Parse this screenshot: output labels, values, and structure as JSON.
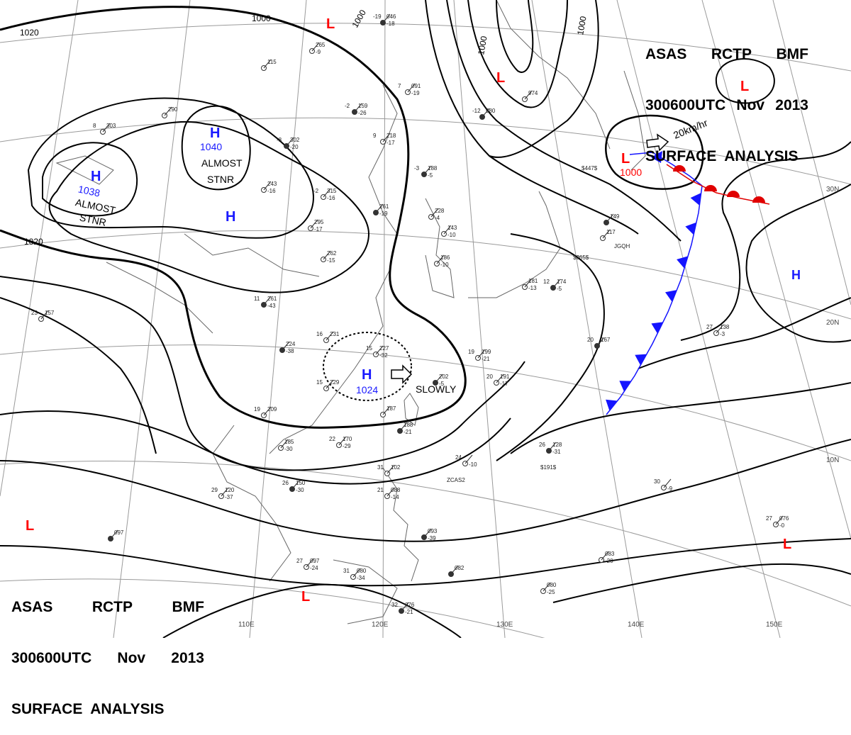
{
  "title": {
    "line1": [
      "ASAS",
      "RCTP",
      "BMF"
    ],
    "line2": [
      "300600UTC",
      "Nov",
      "2013"
    ],
    "line3": "SURFACE  ANALYSIS"
  },
  "colors": {
    "high": "#1a1aff",
    "low": "#ff0000",
    "cold_front": "#1414ff",
    "warm_front": "#e00000",
    "isobar": "#000000",
    "grid": "#999999",
    "coast": "#666666"
  },
  "longitude_labels": [
    "110E",
    "120E",
    "130E",
    "140E",
    "150E"
  ],
  "latitude_labels": [
    "30N",
    "20N",
    "10N"
  ],
  "highs": [
    {
      "id": "h1",
      "letter": "H",
      "pressure": "1040",
      "note": [
        "ALMOST",
        "STNR"
      ]
    },
    {
      "id": "h2",
      "letter": "H",
      "pressure": "1038",
      "note": [
        "ALMOST",
        "STNR"
      ]
    },
    {
      "id": "h3",
      "letter": "H",
      "pressure": "",
      "note": []
    },
    {
      "id": "h4",
      "letter": "H",
      "pressure": "1024",
      "note": [
        "SLOWLY"
      ]
    },
    {
      "id": "h5",
      "letter": "H",
      "pressure": "",
      "note": []
    }
  ],
  "lows": [
    {
      "id": "l1",
      "letter": "L",
      "pressure": ""
    },
    {
      "id": "l2",
      "letter": "L",
      "pressure": ""
    },
    {
      "id": "l3",
      "letter": "L",
      "pressure": ""
    },
    {
      "id": "l4",
      "letter": "L",
      "pressure": "1000",
      "movement": "20km/hr"
    },
    {
      "id": "l5",
      "letter": "L",
      "pressure": ""
    },
    {
      "id": "l6",
      "letter": "L",
      "pressure": ""
    },
    {
      "id": "l7",
      "letter": "L",
      "pressure": ""
    }
  ],
  "isobar_labels": [
    "1020",
    "1020",
    "1000",
    "1000",
    "1000",
    "1000"
  ],
  "stations": [
    {
      "t": "-19",
      "p": "046",
      "d": "-18"
    },
    {
      "t": "",
      "p": "265",
      "d": "-9"
    },
    {
      "t": "",
      "p": "115",
      "d": ""
    },
    {
      "t": "-2",
      "p": "159",
      "d": "-26"
    },
    {
      "t": "7",
      "p": "091",
      "d": "-19"
    },
    {
      "t": "",
      "p": "974",
      "d": ""
    },
    {
      "t": "-12",
      "p": "980",
      "d": ""
    },
    {
      "t": "8",
      "p": "303",
      "d": ""
    },
    {
      "t": "",
      "p": "290",
      "d": ""
    },
    {
      "t": "-8",
      "p": "302",
      "d": "-20"
    },
    {
      "t": "9",
      "p": "218",
      "d": "-17"
    },
    {
      "t": "-2",
      "p": "315",
      "d": "-16"
    },
    {
      "t": "-3",
      "p": "188",
      "d": "-5"
    },
    {
      "t": "",
      "p": "243",
      "d": "-16"
    },
    {
      "t": "",
      "p": "295",
      "d": "-17"
    },
    {
      "t": "",
      "p": "261",
      "d": "-19"
    },
    {
      "t": "",
      "p": "228",
      "d": "-4"
    },
    {
      "t": "",
      "p": "143",
      "d": "-10"
    },
    {
      "t": "",
      "p": "149",
      "d": ""
    },
    {
      "t": "",
      "p": "117",
      "d": ""
    },
    {
      "t": "",
      "p": "262",
      "d": "-15"
    },
    {
      "t": "11",
      "p": "261",
      "d": "-43"
    },
    {
      "t": "",
      "p": "186",
      "d": "-10"
    },
    {
      "t": "",
      "p": "181",
      "d": "-13"
    },
    {
      "t": "12",
      "p": "174",
      "d": "-5"
    },
    {
      "t": "16",
      "p": "231",
      "d": ""
    },
    {
      "t": "15",
      "p": "227",
      "d": "-32"
    },
    {
      "t": "",
      "p": "224",
      "d": "-38"
    },
    {
      "t": "19",
      "p": "199",
      "d": "-21"
    },
    {
      "t": "20",
      "p": "191",
      "d": "-17"
    },
    {
      "t": "20",
      "p": "167",
      "d": ""
    },
    {
      "t": "27",
      "p": "138",
      "d": "-3"
    },
    {
      "t": "15",
      "p": "229",
      "d": ""
    },
    {
      "t": "",
      "p": "202",
      "d": "-5"
    },
    {
      "t": "19",
      "p": "209",
      "d": ""
    },
    {
      "t": "",
      "p": "187",
      "d": ""
    },
    {
      "t": "",
      "p": "188",
      "d": "-21"
    },
    {
      "t": "22",
      "p": "170",
      "d": "-29"
    },
    {
      "t": "",
      "p": "185",
      "d": "-30"
    },
    {
      "t": "26",
      "p": "128",
      "d": "-31"
    },
    {
      "t": "24",
      "p": "",
      "d": "-10"
    },
    {
      "t": "31",
      "p": "102",
      "d": ""
    },
    {
      "t": "26",
      "p": "150",
      "d": "-30"
    },
    {
      "t": "29",
      "p": "120",
      "d": "-37"
    },
    {
      "t": "21",
      "p": "088",
      "d": "-14"
    },
    {
      "t": "",
      "p": "093",
      "d": "-39"
    },
    {
      "t": "27",
      "p": "097",
      "d": "-24"
    },
    {
      "t": "31",
      "p": "080",
      "d": "-34"
    },
    {
      "t": "",
      "p": "082",
      "d": ""
    },
    {
      "t": "",
      "p": "083",
      "d": "-20"
    },
    {
      "t": "",
      "p": "080",
      "d": "-25"
    },
    {
      "t": "32",
      "p": "076",
      "d": "-21"
    },
    {
      "t": "27",
      "p": "076",
      "d": "-0"
    },
    {
      "t": "30",
      "p": "",
      "d": "-9"
    },
    {
      "t": "",
      "p": "097",
      "d": ""
    },
    {
      "t": "23",
      "p": "157",
      "d": ""
    }
  ],
  "ship_labels": [
    "$447$",
    "$365$",
    "JGQH",
    "$191$",
    "ZCAS2"
  ]
}
